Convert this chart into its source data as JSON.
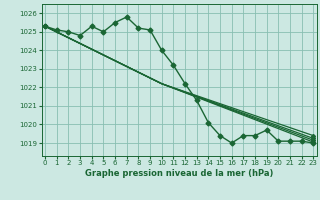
{
  "title": "Graphe pression niveau de la mer (hPa)",
  "bg_color": "#cce8e2",
  "grid_color": "#88bfb2",
  "line_color": "#1a6634",
  "xlim": [
    -0.3,
    23.3
  ],
  "ylim": [
    1018.3,
    1026.5
  ],
  "yticks": [
    1019,
    1020,
    1021,
    1022,
    1023,
    1024,
    1025,
    1026
  ],
  "xticks": [
    0,
    1,
    2,
    3,
    4,
    5,
    6,
    7,
    8,
    9,
    10,
    11,
    12,
    13,
    14,
    15,
    16,
    17,
    18,
    19,
    20,
    21,
    22,
    23
  ],
  "main_series": [
    1025.3,
    1025.1,
    1025.0,
    1024.8,
    1025.3,
    1025.0,
    1025.5,
    1025.8,
    1025.2,
    1025.1,
    1024.0,
    1023.2,
    1022.2,
    1021.3,
    1020.1,
    1019.4,
    1019.0,
    1019.4,
    1019.4,
    1019.7,
    1019.1,
    1019.1,
    1019.1,
    1019.0
  ],
  "trend_lines": [
    {
      "x": [
        0,
        10,
        23
      ],
      "y": [
        1025.3,
        1022.2,
        1019.05
      ]
    },
    {
      "x": [
        0,
        10,
        23
      ],
      "y": [
        1025.3,
        1022.2,
        1019.15
      ]
    },
    {
      "x": [
        0,
        10,
        23
      ],
      "y": [
        1025.3,
        1022.2,
        1019.25
      ]
    },
    {
      "x": [
        0,
        10,
        23
      ],
      "y": [
        1025.3,
        1022.2,
        1019.4
      ]
    }
  ]
}
